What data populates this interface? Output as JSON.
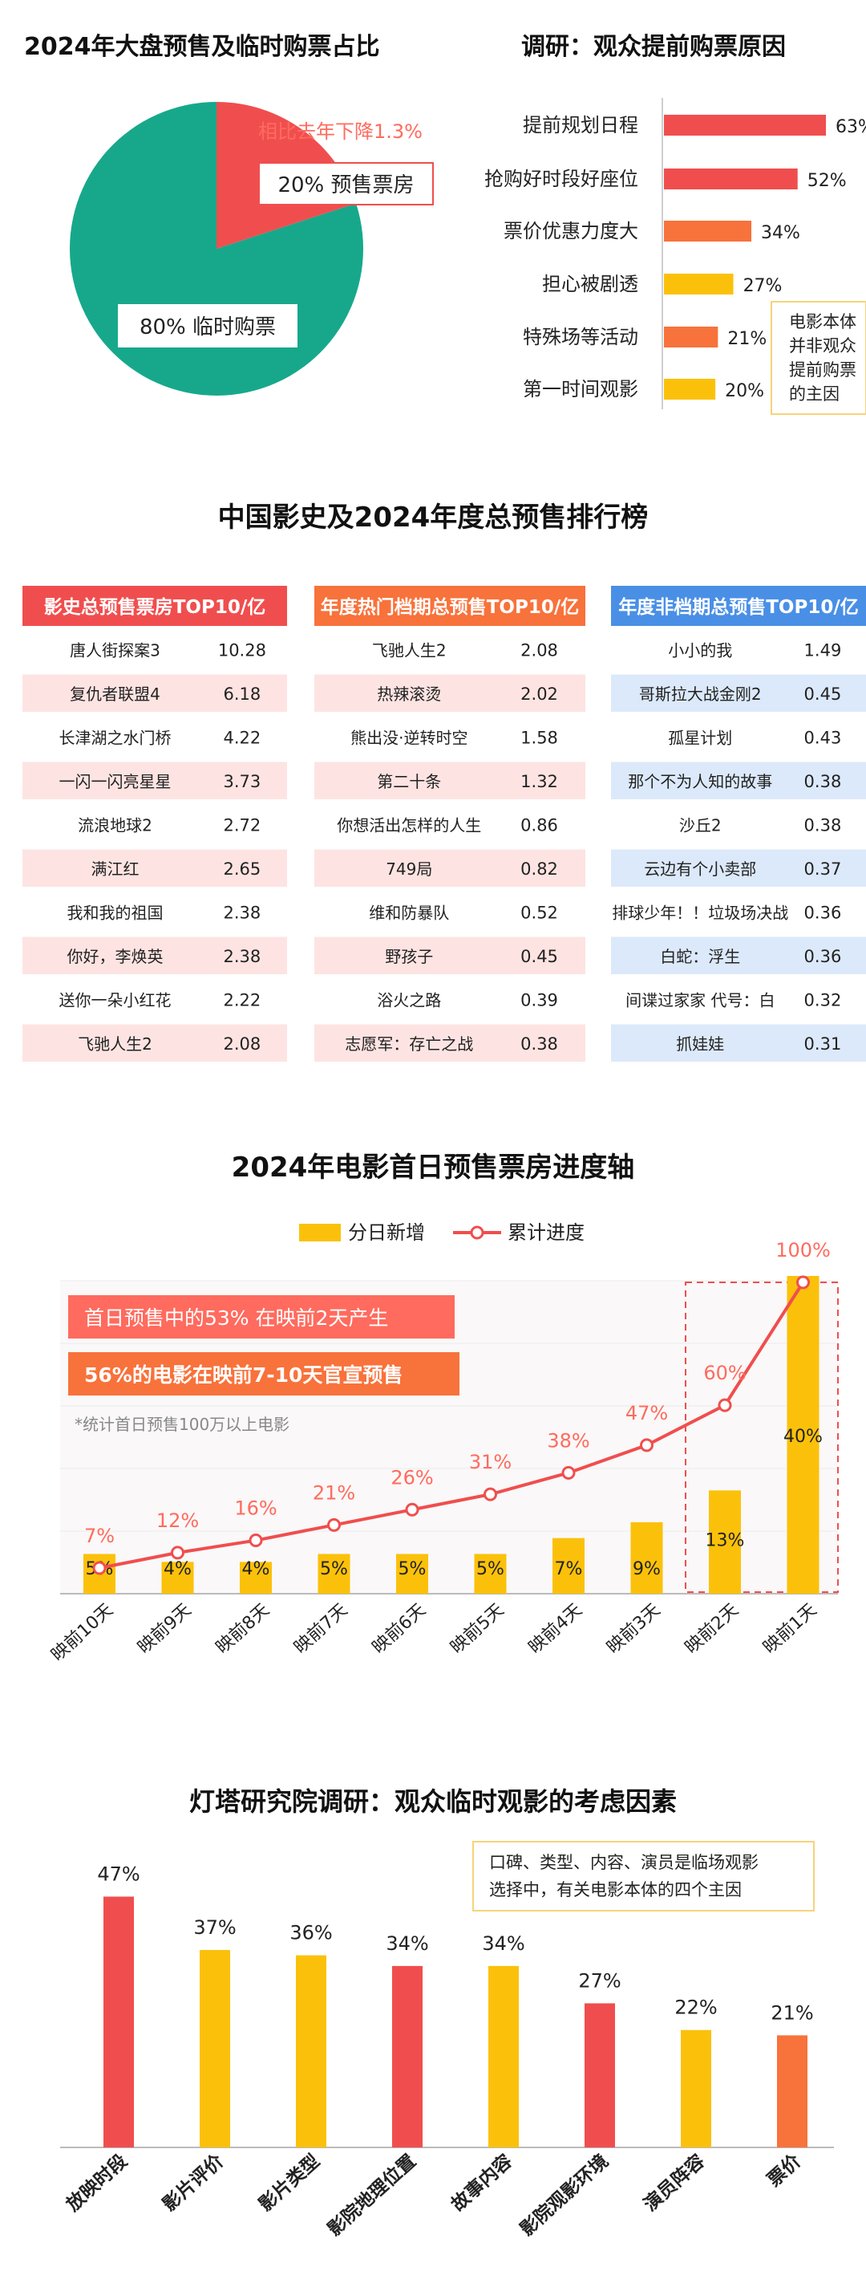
{
  "colors": {
    "red": "#f04e4e",
    "red_light": "#ff6b5e",
    "orange": "#f8723b",
    "yellow": "#fbc10a",
    "teal": "#17a88b",
    "blue": "#4a8fe6",
    "blue_light": "#dce9fa",
    "pink_light": "#fde4e2"
  },
  "chart_data": [
    {
      "id": "presale_share",
      "type": "pie",
      "title": "2024年大盘预售及临时购票占比",
      "categories": [
        "预售票房",
        "临时购票"
      ],
      "values": [
        20,
        80
      ],
      "value_labels": [
        "20% 预售票房",
        "80% 临时购票"
      ],
      "annotations": [
        "相比去年下降1.3%"
      ]
    },
    {
      "id": "advance_reasons",
      "type": "bar",
      "orientation": "horizontal",
      "title": "调研：观众提前购票原因",
      "categories": [
        "提前规划日程",
        "抢购好时段好座位",
        "票价优惠力度大",
        "担心被剧透",
        "特殊场等活动",
        "第一时间观影"
      ],
      "values": [
        63,
        52,
        34,
        27,
        21,
        20
      ],
      "value_labels": [
        "63%",
        "52%",
        "34%",
        "27%",
        "21%",
        "20%"
      ],
      "annotations": [
        "电影本体",
        "并非观众",
        "提前购票",
        "的主因"
      ]
    },
    {
      "id": "presale_rankings",
      "type": "table",
      "title": "中国影史及2024年度总预售排行榜",
      "tables": [
        {
          "header": "影史总预售票房TOP10/亿",
          "rows": [
            [
              "唐人街探案3",
              "10.28"
            ],
            [
              "复仇者联盟4",
              "6.18"
            ],
            [
              "长津湖之水门桥",
              "4.22"
            ],
            [
              "一闪一闪亮星星",
              "3.73"
            ],
            [
              "流浪地球2",
              "2.72"
            ],
            [
              "满江红",
              "2.65"
            ],
            [
              "我和我的祖国",
              "2.38"
            ],
            [
              "你好，李焕英",
              "2.38"
            ],
            [
              "送你一朵小红花",
              "2.22"
            ],
            [
              "飞驰人生2",
              "2.08"
            ]
          ]
        },
        {
          "header": "年度热门档期总预售TOP10/亿",
          "rows": [
            [
              "飞驰人生2",
              "2.08"
            ],
            [
              "热辣滚烫",
              "2.02"
            ],
            [
              "熊出没·逆转时空",
              "1.58"
            ],
            [
              "第二十条",
              "1.32"
            ],
            [
              "你想活出怎样的人生",
              "0.86"
            ],
            [
              "749局",
              "0.82"
            ],
            [
              "维和防暴队",
              "0.52"
            ],
            [
              "野孩子",
              "0.45"
            ],
            [
              "浴火之路",
              "0.39"
            ],
            [
              "志愿军：存亡之战",
              "0.38"
            ]
          ]
        },
        {
          "header": "年度非档期总预售TOP10/亿",
          "rows": [
            [
              "小小的我",
              "1.49"
            ],
            [
              "哥斯拉大战金刚2",
              "0.45"
            ],
            [
              "孤星计划",
              "0.43"
            ],
            [
              "那个不为人知的故事",
              "0.38"
            ],
            [
              "沙丘2",
              "0.38"
            ],
            [
              "云边有个小卖部",
              "0.37"
            ],
            [
              "排球少年！！垃圾场决战",
              "0.36"
            ],
            [
              "白蛇：浮生",
              "0.36"
            ],
            [
              "间谍过家家 代号：白",
              "0.32"
            ],
            [
              "抓娃娃",
              "0.31"
            ]
          ]
        }
      ]
    },
    {
      "id": "presale_timeline",
      "type": "bar",
      "title": "2024年电影首日预售票房进度轴",
      "categories": [
        "映前10天",
        "映前9天",
        "映前8天",
        "映前7天",
        "映前6天",
        "映前5天",
        "映前4天",
        "映前3天",
        "映前2天",
        "映前1天"
      ],
      "series": [
        {
          "name": "分日新增",
          "type": "bar",
          "values": [
            5,
            4,
            4,
            5,
            5,
            5,
            7,
            9,
            13,
            40
          ],
          "value_labels": [
            "5%",
            "4%",
            "4%",
            "5%",
            "5%",
            "5%",
            "7%",
            "9%",
            "13%",
            "40%"
          ]
        },
        {
          "name": "累计进度",
          "type": "line",
          "values": [
            7,
            12,
            16,
            21,
            26,
            31,
            38,
            47,
            60,
            100
          ],
          "value_labels": [
            "7%",
            "12%",
            "16%",
            "21%",
            "26%",
            "31%",
            "38%",
            "47%",
            "60%",
            "100%"
          ]
        }
      ],
      "ylim": [
        0,
        100
      ],
      "legend_position": "top",
      "annotations": [
        "首日预售中的53% 在映前2天产生",
        "56%的电影在映前7-10天官宣预售",
        "*统计首日预售100万以上电影"
      ]
    },
    {
      "id": "walkin_factors",
      "type": "bar",
      "title": "灯塔研究院调研：观众临时观影的考虑因素",
      "categories": [
        "放映时段",
        "影片评价",
        "影片类型",
        "影院地理位置",
        "故事内容",
        "影院观影环境",
        "演员阵容",
        "票价"
      ],
      "values": [
        47,
        37,
        36,
        34,
        34,
        27,
        22,
        21
      ],
      "value_labels": [
        "47%",
        "37%",
        "36%",
        "34%",
        "34%",
        "27%",
        "22%",
        "21%"
      ],
      "annotations": [
        "口碑、类型、内容、演员是临场观影",
        "选择中，有关电影本体的四个主因"
      ]
    }
  ]
}
